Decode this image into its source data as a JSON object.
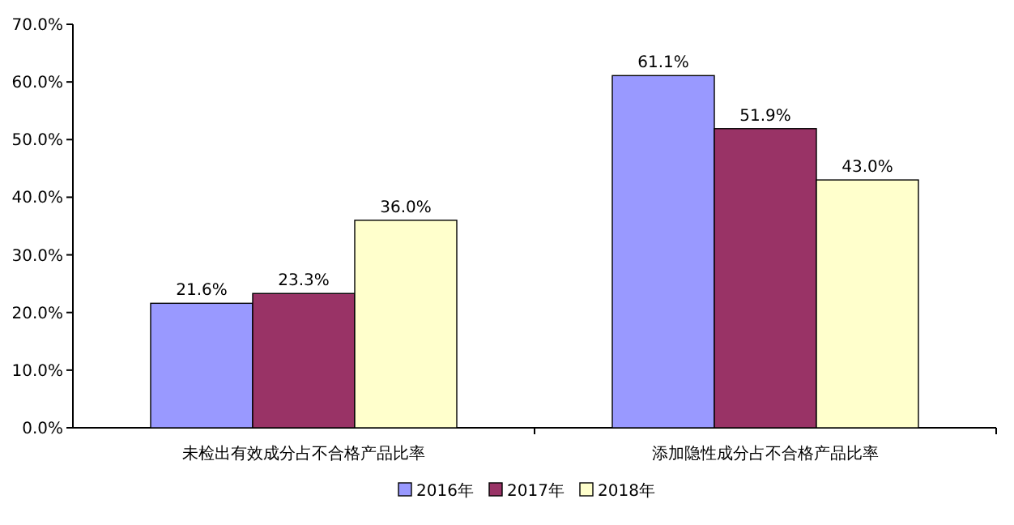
{
  "chart_data": {
    "type": "bar",
    "categories": [
      "未检出有效成分占不合格产品比率",
      "添加隐性成分占不合格产品比率"
    ],
    "series": [
      {
        "name": "2016年",
        "color": "#9999ff",
        "values": [
          21.6,
          61.1
        ],
        "value_labels": [
          "21.6%",
          "61.1%"
        ]
      },
      {
        "name": "2017年",
        "color": "#993366",
        "values": [
          23.3,
          51.9
        ],
        "value_labels": [
          "23.3%",
          "51.9%"
        ]
      },
      {
        "name": "2018年",
        "color": "#ffffcc",
        "values": [
          36.0,
          43.0
        ],
        "value_labels": [
          "36.0%",
          "43.0%"
        ]
      }
    ],
    "ylim": [
      0,
      70
    ],
    "yticks": [
      {
        "value": 0,
        "label": "0.0%"
      },
      {
        "value": 10,
        "label": "10.0%"
      },
      {
        "value": 20,
        "label": "20.0%"
      },
      {
        "value": 30,
        "label": "30.0%"
      },
      {
        "value": 40,
        "label": "40.0%"
      },
      {
        "value": 50,
        "label": "50.0%"
      },
      {
        "value": 60,
        "label": "60.0%"
      },
      {
        "value": 70,
        "label": "70.0%"
      }
    ],
    "legend": "bottom"
  }
}
